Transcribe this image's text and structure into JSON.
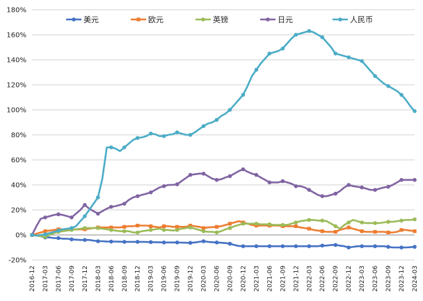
{
  "chart_data": {
    "type": "line",
    "title": "",
    "xlabel": "",
    "ylabel": "",
    "ylim": [
      -0.2,
      1.8
    ],
    "yticks": [
      "-20%",
      "0%",
      "20%",
      "40%",
      "60%",
      "80%",
      "100%",
      "120%",
      "140%",
      "160%",
      "180%"
    ],
    "grid": true,
    "legend_position": "top",
    "categories": [
      "2016-12",
      "2017-01",
      "2017-02",
      "2017-03",
      "2017-04",
      "2017-05",
      "2017-06",
      "2017-07",
      "2017-08",
      "2017-09",
      "2017-10",
      "2017-11",
      "2017-12",
      "2018-01",
      "2018-02",
      "2018-03",
      "2018-04",
      "2018-05",
      "2018-06",
      "2018-07",
      "2018-08",
      "2018-09",
      "2018-10",
      "2018-11",
      "2018-12",
      "2019-01",
      "2019-02",
      "2019-03",
      "2019-04",
      "2019-05",
      "2019-06",
      "2019-07",
      "2019-08",
      "2019-09",
      "2019-10",
      "2019-11",
      "2019-12",
      "2020-01",
      "2020-02",
      "2020-03",
      "2020-04",
      "2020-05",
      "2020-06",
      "2020-07",
      "2020-08",
      "2020-09",
      "2020-10",
      "2020-11",
      "2020-12",
      "2021-01",
      "2021-02",
      "2021-03",
      "2021-04",
      "2021-05",
      "2021-06",
      "2021-07",
      "2021-08",
      "2021-09",
      "2021-10",
      "2021-11",
      "2021-12",
      "2022-01",
      "2022-02",
      "2022-03",
      "2022-04",
      "2022-05",
      "2022-06",
      "2022-07",
      "2022-08",
      "2022-09",
      "2022-10",
      "2022-11",
      "2022-12",
      "2023-01",
      "2023-02",
      "2023-03",
      "2023-04",
      "2023-05",
      "2023-06",
      "2023-07",
      "2023-08",
      "2023-09",
      "2023-10",
      "2023-11",
      "2023-12",
      "2024-01",
      "2024-02",
      "2024-03"
    ],
    "xtick_labels": [
      "2016-12",
      "2017-03",
      "2017-06",
      "2017-09",
      "2017-12",
      "2018-03",
      "2018-06",
      "2018-09",
      "2018-12",
      "2019-03",
      "2019-06",
      "2019-09",
      "2019-12",
      "2020-03",
      "2020-06",
      "2020-09",
      "2020-12",
      "2021-03",
      "2021-06",
      "2021-09",
      "2021-12",
      "2022-03",
      "2022-06",
      "2022-09",
      "2022-12",
      "2023-03",
      "2023-06",
      "2023-09",
      "2023-12",
      "2024-03"
    ],
    "marker_every": 3,
    "series": [
      {
        "name": "美元",
        "color": "#4472C4",
        "values": [
          0,
          -0.005,
          -0.01,
          -0.02,
          -0.02,
          -0.025,
          -0.025,
          -0.03,
          -0.03,
          -0.035,
          -0.038,
          -0.04,
          -0.04,
          -0.04,
          -0.045,
          -0.05,
          -0.05,
          -0.052,
          -0.053,
          -0.053,
          -0.054,
          -0.055,
          -0.055,
          -0.055,
          -0.055,
          -0.055,
          -0.056,
          -0.057,
          -0.058,
          -0.059,
          -0.06,
          -0.06,
          -0.06,
          -0.06,
          -0.061,
          -0.062,
          -0.063,
          -0.06,
          -0.055,
          -0.05,
          -0.055,
          -0.058,
          -0.06,
          -0.062,
          -0.065,
          -0.07,
          -0.08,
          -0.088,
          -0.09,
          -0.09,
          -0.09,
          -0.09,
          -0.09,
          -0.09,
          -0.09,
          -0.09,
          -0.09,
          -0.09,
          -0.09,
          -0.09,
          -0.09,
          -0.09,
          -0.09,
          -0.09,
          -0.09,
          -0.09,
          -0.085,
          -0.085,
          -0.08,
          -0.08,
          -0.085,
          -0.09,
          -0.1,
          -0.095,
          -0.09,
          -0.09,
          -0.09,
          -0.09,
          -0.09,
          -0.09,
          -0.09,
          -0.095,
          -0.1,
          -0.1,
          -0.1,
          -0.1,
          -0.098,
          -0.095
        ]
      },
      {
        "name": "欧元",
        "color": "#ED7D31",
        "values": [
          0,
          0.01,
          0.02,
          0.03,
          0.035,
          0.04,
          0.045,
          0.045,
          0.045,
          0.045,
          0.045,
          0.045,
          0.045,
          0.05,
          0.055,
          0.06,
          0.06,
          0.06,
          0.06,
          0.06,
          0.06,
          0.065,
          0.07,
          0.07,
          0.075,
          0.075,
          0.075,
          0.07,
          0.065,
          0.06,
          0.07,
          0.07,
          0.065,
          0.065,
          0.065,
          0.065,
          0.075,
          0.07,
          0.065,
          0.055,
          0.06,
          0.062,
          0.065,
          0.07,
          0.08,
          0.09,
          0.1,
          0.11,
          0.1,
          0.09,
          0.08,
          0.075,
          0.075,
          0.075,
          0.075,
          0.075,
          0.075,
          0.07,
          0.07,
          0.07,
          0.07,
          0.06,
          0.055,
          0.05,
          0.04,
          0.035,
          0.03,
          0.025,
          0.025,
          0.025,
          0.04,
          0.05,
          0.06,
          0.05,
          0.04,
          0.03,
          0.025,
          0.025,
          0.025,
          0.025,
          0.025,
          0.02,
          0.02,
          0.025,
          0.04,
          0.04,
          0.035,
          0.03
        ]
      },
      {
        "name": "英镑",
        "color": "#9BBB59",
        "values": [
          0,
          -0.005,
          -0.01,
          -0.015,
          0.0,
          0.015,
          0.025,
          0.03,
          0.035,
          0.04,
          0.045,
          0.05,
          0.055,
          0.055,
          0.055,
          0.055,
          0.05,
          0.045,
          0.04,
          0.035,
          0.03,
          0.03,
          0.03,
          0.02,
          0.02,
          0.03,
          0.035,
          0.04,
          0.045,
          0.05,
          0.04,
          0.04,
          0.035,
          0.04,
          0.05,
          0.055,
          0.06,
          0.05,
          0.04,
          0.03,
          0.025,
          0.025,
          0.02,
          0.03,
          0.045,
          0.055,
          0.07,
          0.08,
          0.09,
          0.09,
          0.09,
          0.09,
          0.085,
          0.085,
          0.085,
          0.08,
          0.08,
          0.08,
          0.08,
          0.09,
          0.1,
          0.11,
          0.115,
          0.12,
          0.12,
          0.115,
          0.115,
          0.11,
          0.09,
          0.07,
          0.05,
          0.08,
          0.1,
          0.12,
          0.11,
          0.1,
          0.095,
          0.095,
          0.095,
          0.095,
          0.1,
          0.105,
          0.105,
          0.11,
          0.115,
          0.12,
          0.12,
          0.125
        ]
      },
      {
        "name": "日元",
        "color": "#8064A2",
        "values": [
          0,
          0.07,
          0.13,
          0.14,
          0.15,
          0.16,
          0.165,
          0.16,
          0.15,
          0.14,
          0.17,
          0.2,
          0.24,
          0.21,
          0.19,
          0.17,
          0.19,
          0.21,
          0.225,
          0.23,
          0.24,
          0.25,
          0.28,
          0.3,
          0.31,
          0.32,
          0.33,
          0.34,
          0.36,
          0.38,
          0.39,
          0.4,
          0.4,
          0.405,
          0.43,
          0.455,
          0.48,
          0.485,
          0.49,
          0.49,
          0.47,
          0.45,
          0.44,
          0.445,
          0.46,
          0.47,
          0.49,
          0.51,
          0.525,
          0.505,
          0.49,
          0.48,
          0.46,
          0.44,
          0.42,
          0.42,
          0.42,
          0.43,
          0.42,
          0.41,
          0.39,
          0.39,
          0.38,
          0.36,
          0.34,
          0.32,
          0.31,
          0.31,
          0.32,
          0.33,
          0.35,
          0.38,
          0.4,
          0.39,
          0.385,
          0.38,
          0.37,
          0.36,
          0.36,
          0.37,
          0.38,
          0.385,
          0.4,
          0.42,
          0.44,
          0.44,
          0.44,
          0.44
        ]
      },
      {
        "name": "人民币",
        "color": "#4BACC6",
        "values": [
          0,
          -0.005,
          0.0,
          0.005,
          0.015,
          0.025,
          0.035,
          0.045,
          0.05,
          0.055,
          0.07,
          0.11,
          0.15,
          0.2,
          0.25,
          0.3,
          0.45,
          0.7,
          0.7,
          0.69,
          0.67,
          0.7,
          0.73,
          0.76,
          0.775,
          0.78,
          0.79,
          0.81,
          0.805,
          0.79,
          0.79,
          0.8,
          0.805,
          0.82,
          0.81,
          0.8,
          0.8,
          0.82,
          0.845,
          0.87,
          0.89,
          0.9,
          0.92,
          0.95,
          0.97,
          1.0,
          1.04,
          1.08,
          1.12,
          1.19,
          1.27,
          1.32,
          1.37,
          1.41,
          1.45,
          1.46,
          1.47,
          1.49,
          1.53,
          1.57,
          1.6,
          1.61,
          1.62,
          1.63,
          1.62,
          1.6,
          1.58,
          1.54,
          1.5,
          1.45,
          1.44,
          1.43,
          1.42,
          1.41,
          1.4,
          1.39,
          1.35,
          1.31,
          1.27,
          1.24,
          1.21,
          1.19,
          1.17,
          1.15,
          1.12,
          1.08,
          1.03,
          0.99
        ]
      }
    ]
  }
}
